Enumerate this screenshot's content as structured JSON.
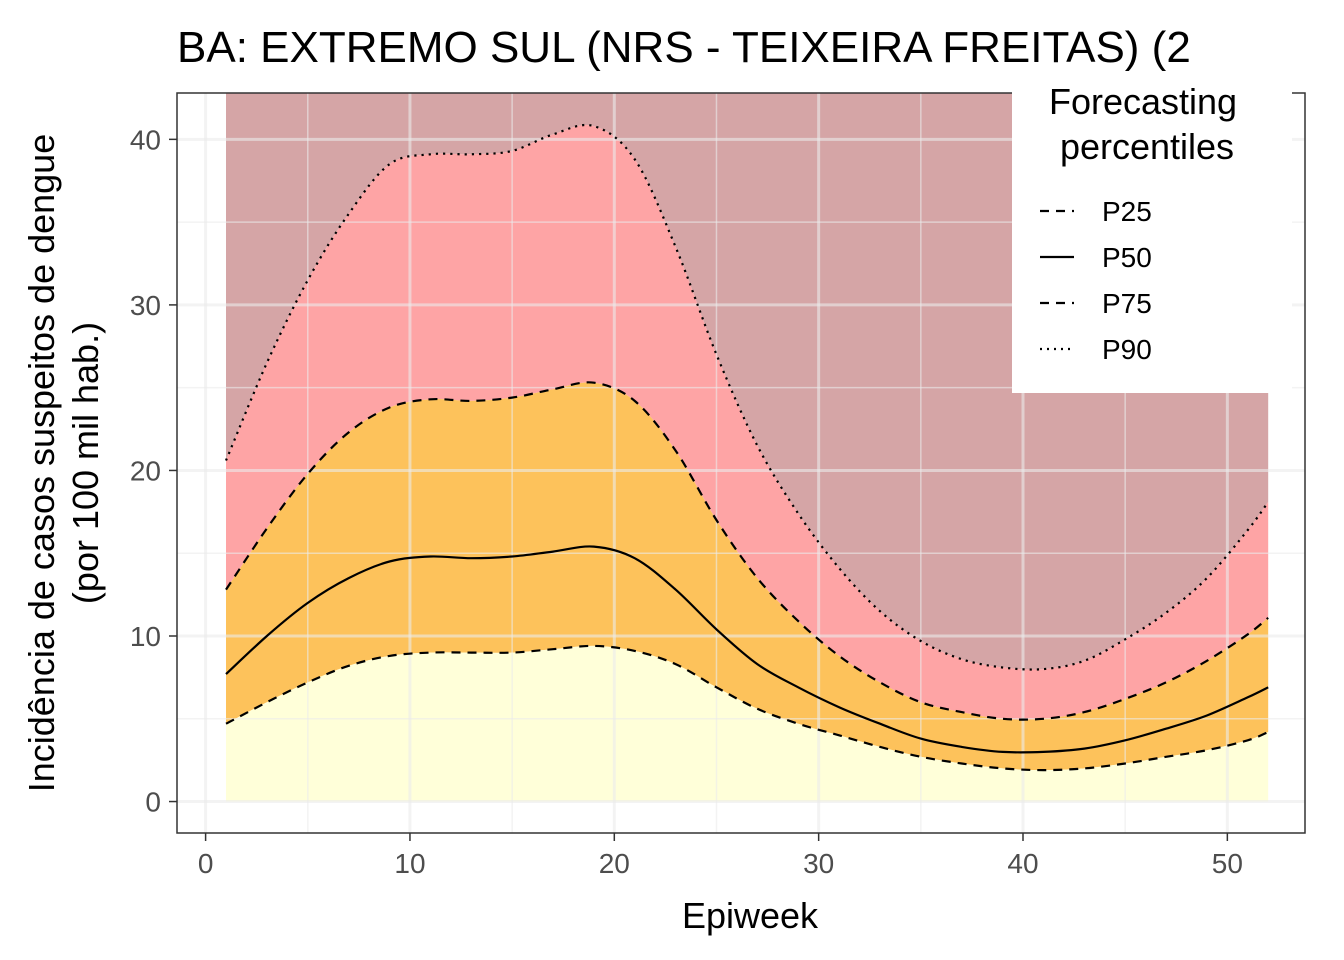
{
  "chart_data": {
    "type": "area",
    "title": "BA: EXTREMO SUL (NRS - TEIXEIRA FREITAS) (2",
    "xlabel": "Epiweek",
    "ylabel_line1": "Incidência de casos suspeitos de dengue",
    "ylabel_line2": "(por 100 mil hab.)",
    "xlim": [
      -1.4,
      53.8
    ],
    "ylim": [
      -1.9,
      42.8
    ],
    "x_ticks": [
      0,
      10,
      20,
      30,
      40,
      50
    ],
    "y_ticks": [
      0,
      10,
      20,
      30,
      40
    ],
    "grid": true,
    "legend": {
      "title_line1": "Forecasting",
      "title_line2": "percentiles",
      "position": "top-right",
      "entries": [
        {
          "label": "P25",
          "dash": "dashed"
        },
        {
          "label": "P50",
          "dash": "solid"
        },
        {
          "label": "P75",
          "dash": "dashed"
        },
        {
          "label": "P90",
          "dash": "dotted"
        }
      ]
    },
    "band_colors": {
      "below_p25": "#ffffd9",
      "p25_p75": "#fdc25b",
      "p75_p90": "#fea4a5",
      "above_p90": "#d5a5a6"
    },
    "band_top": 42.8,
    "x": [
      1,
      3,
      5,
      7,
      9,
      11,
      13,
      15,
      17,
      19,
      21,
      23,
      25,
      27,
      29,
      31,
      33,
      35,
      37,
      39,
      41,
      43,
      45,
      47,
      49,
      51,
      52
    ],
    "series": [
      {
        "name": "P25",
        "values": [
          4.7,
          6.0,
          7.2,
          8.2,
          8.8,
          9.0,
          9.0,
          9.0,
          9.2,
          9.4,
          9.1,
          8.3,
          6.9,
          5.6,
          4.7,
          4.0,
          3.3,
          2.7,
          2.3,
          2.0,
          1.9,
          2.0,
          2.3,
          2.7,
          3.1,
          3.7,
          4.2
        ]
      },
      {
        "name": "P50",
        "values": [
          7.7,
          10.0,
          12.0,
          13.5,
          14.5,
          14.8,
          14.7,
          14.8,
          15.1,
          15.4,
          14.7,
          12.8,
          10.4,
          8.3,
          6.9,
          5.7,
          4.7,
          3.8,
          3.3,
          3.0,
          3.0,
          3.2,
          3.7,
          4.4,
          5.2,
          6.3,
          6.9
        ]
      },
      {
        "name": "P75",
        "values": [
          12.8,
          16.5,
          19.8,
          22.3,
          23.8,
          24.3,
          24.2,
          24.4,
          24.9,
          25.3,
          24.2,
          21.2,
          17.0,
          13.5,
          10.9,
          8.8,
          7.2,
          6.0,
          5.4,
          5.0,
          5.0,
          5.4,
          6.2,
          7.2,
          8.5,
          10.1,
          11.1
        ]
      },
      {
        "name": "P90",
        "values": [
          20.6,
          26.5,
          31.5,
          35.5,
          38.5,
          39.1,
          39.1,
          39.3,
          40.3,
          40.8,
          38.8,
          33.5,
          27.0,
          21.5,
          17.4,
          14.1,
          11.5,
          9.7,
          8.6,
          8.1,
          8.0,
          8.5,
          9.8,
          11.4,
          13.5,
          16.4,
          18.1
        ]
      }
    ]
  }
}
